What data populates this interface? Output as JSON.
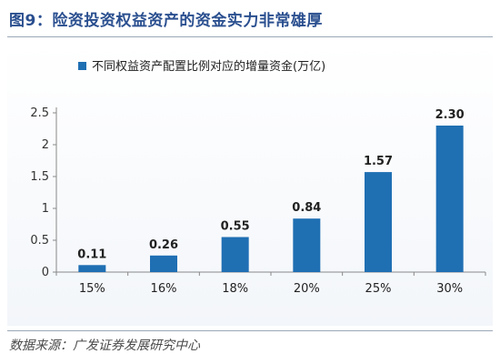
{
  "figure": {
    "title": "图9：险资投资权益资产的资金实力非常雄厚",
    "source": "数据来源：广发证券发展研究中心"
  },
  "colors": {
    "bar": "#1f6fb3",
    "title": "#2a4f8f"
  },
  "chart_data": {
    "type": "bar",
    "categories": [
      "15%",
      "16%",
      "18%",
      "20%",
      "25%",
      "30%"
    ],
    "series": [
      {
        "name": "不同权益资产配置比例对应的增量资金(万亿)",
        "values": [
          0.11,
          0.26,
          0.55,
          0.84,
          1.57,
          2.3
        ],
        "labels": [
          "0.11",
          "0.26",
          "0.55",
          "0.84",
          "1.57",
          "2.30"
        ]
      }
    ],
    "yticks": [
      "0",
      "0.5",
      "1",
      "1.5",
      "2",
      "2.5"
    ],
    "ylim": [
      0,
      2.5
    ],
    "legend_position": "top",
    "grid": false
  }
}
